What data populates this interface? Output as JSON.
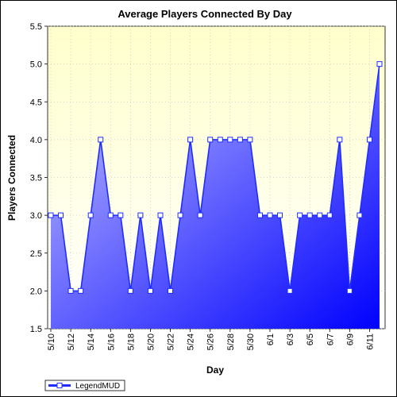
{
  "chart_data": {
    "type": "area",
    "title": "Average Players Connected By Day",
    "xlabel": "Day",
    "ylabel": "Players Connected",
    "ylim": [
      1.5,
      5.5
    ],
    "yticks": [
      "1.5",
      "2.0",
      "2.5",
      "3.0",
      "3.5",
      "4.0",
      "4.5",
      "5.0",
      "5.5"
    ],
    "x": [
      "5/10",
      "5/11",
      "5/12",
      "5/13",
      "5/14",
      "5/15",
      "5/16",
      "5/17",
      "5/18",
      "5/19",
      "5/20",
      "5/21",
      "5/22",
      "5/23",
      "5/24",
      "5/25",
      "5/26",
      "5/27",
      "5/28",
      "5/29",
      "5/30",
      "5/31",
      "6/1",
      "6/2",
      "6/3",
      "6/4",
      "6/5",
      "6/6",
      "6/7",
      "6/8",
      "6/9",
      "6/10",
      "6/11",
      "6/12"
    ],
    "xtick_labels": [
      "5/10",
      "5/12",
      "5/14",
      "5/16",
      "5/18",
      "5/20",
      "5/22",
      "5/24",
      "5/26",
      "5/28",
      "5/30",
      "6/1",
      "6/3",
      "6/5",
      "6/7",
      "6/9",
      "6/11"
    ],
    "series": [
      {
        "name": "LegendMUD",
        "values": [
          3,
          3,
          2,
          2,
          3,
          4,
          3,
          3,
          2,
          3,
          2,
          3,
          2,
          3,
          4,
          3,
          4,
          4,
          4,
          4,
          4,
          3,
          3,
          3,
          2,
          3,
          3,
          3,
          3,
          4,
          2,
          3,
          4,
          5
        ]
      }
    ],
    "grid": true,
    "legend": "bottom-left",
    "colors": {
      "line": "#1f2dff",
      "fill_light": "#b4b4ff",
      "fill_dark": "#0000ff",
      "plot_bg_top": "#ffffcc",
      "plot_bg_bottom": "#ffffff"
    }
  }
}
